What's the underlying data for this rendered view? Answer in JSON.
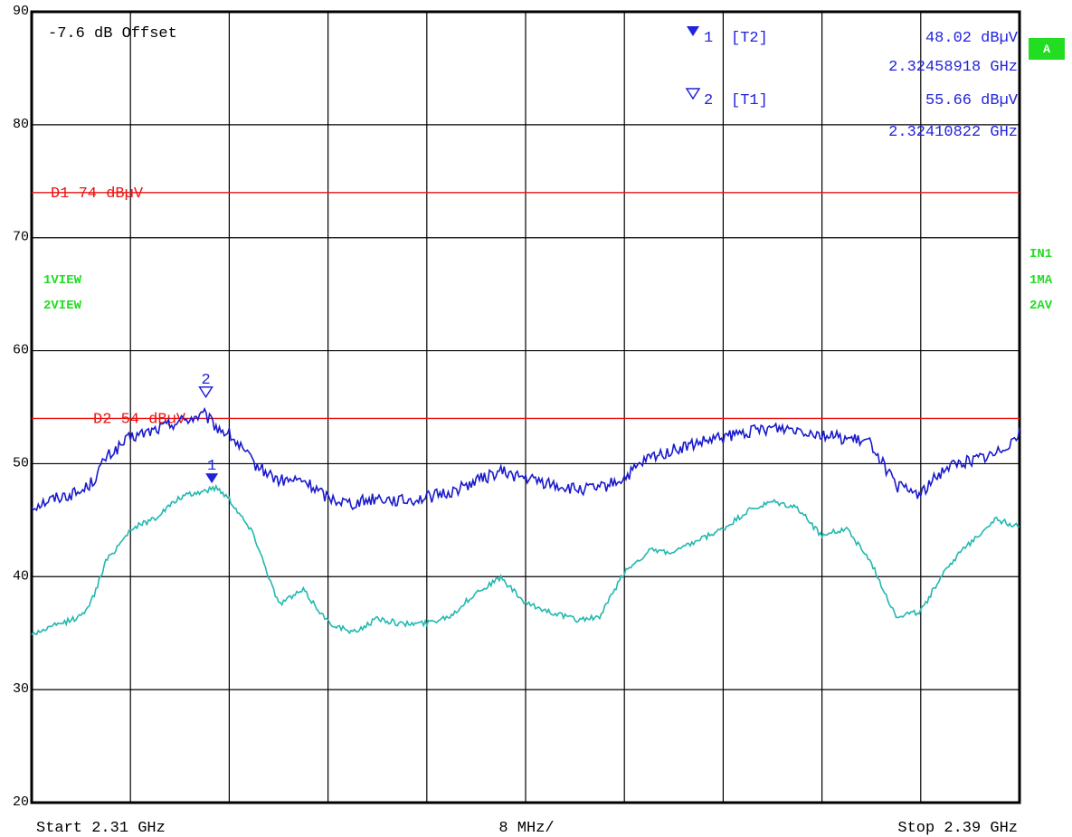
{
  "offset_label": "-7.6 dB Offset",
  "markers": [
    {
      "id": "1",
      "trace": "[T2]",
      "level": "48.02 dBµV",
      "freq": "2.32458918 GHz",
      "x_ghz": 2.32458918,
      "y": 48.02,
      "filled": true
    },
    {
      "id": "2",
      "trace": "[T1]",
      "level": "55.66 dBµV",
      "freq": "2.32410822 GHz",
      "x_ghz": 2.32410822,
      "y": 55.66,
      "filled": false
    }
  ],
  "limit_lines": [
    {
      "label": "D1 74 dBµV",
      "value": 74
    },
    {
      "label": "D2 54 dBµV",
      "value": 54
    }
  ],
  "left_status": [
    "1VIEW",
    "2VIEW"
  ],
  "right_status": [
    "IN1",
    "1MA",
    "2AV"
  ],
  "status_badge": "A",
  "footer": {
    "start": "Start 2.31 GHz",
    "span": "8 MHz/",
    "stop": "Stop 2.39 GHz"
  },
  "colors": {
    "trace1": "#1a1acc",
    "trace2": "#22b8b0",
    "limit": "#ee1111",
    "grid": "#000000",
    "status": "#22dd22"
  },
  "chart_data": {
    "type": "line",
    "xlim": [
      2.31,
      2.39
    ],
    "ylim": [
      20,
      90
    ],
    "y_ticks": [
      20,
      30,
      40,
      50,
      60,
      70,
      80,
      90
    ],
    "grid": true,
    "series": [
      {
        "name": "1MA",
        "x": [
          2.31,
          2.312,
          2.314,
          2.315,
          2.316,
          2.318,
          2.32,
          2.322,
          2.324,
          2.325,
          2.326,
          2.328,
          2.33,
          2.332,
          2.334,
          2.336,
          2.338,
          2.34,
          2.342,
          2.344,
          2.346,
          2.348,
          2.35,
          2.352,
          2.354,
          2.356,
          2.358,
          2.36,
          2.362,
          2.364,
          2.366,
          2.368,
          2.37,
          2.372,
          2.374,
          2.376,
          2.378,
          2.38,
          2.382,
          2.384,
          2.386,
          2.388,
          2.39
        ],
        "y": [
          46.2,
          47,
          47.5,
          48.5,
          50.5,
          52.3,
          53,
          53.8,
          54.3,
          53.2,
          52.6,
          50,
          48.5,
          48.5,
          47,
          46.5,
          47,
          46.7,
          47,
          47.5,
          48.5,
          49.3,
          48.7,
          48.2,
          47.7,
          47.8,
          48.7,
          50.5,
          51.2,
          51.8,
          52.3,
          52.8,
          53.2,
          53.1,
          52.6,
          52.2,
          51.8,
          48,
          47.3,
          49.7,
          50.3,
          50.8,
          52.7
        ]
      },
      {
        "name": "2AV",
        "x": [
          2.31,
          2.312,
          2.314,
          2.315,
          2.316,
          2.318,
          2.32,
          2.322,
          2.324,
          2.325,
          2.326,
          2.328,
          2.33,
          2.332,
          2.334,
          2.336,
          2.338,
          2.34,
          2.342,
          2.344,
          2.346,
          2.348,
          2.35,
          2.352,
          2.354,
          2.356,
          2.358,
          2.36,
          2.362,
          2.364,
          2.366,
          2.368,
          2.37,
          2.372,
          2.374,
          2.376,
          2.378,
          2.38,
          2.382,
          2.384,
          2.386,
          2.388,
          2.39
        ],
        "y": [
          34.9,
          35.7,
          36.5,
          38.2,
          41.3,
          44.2,
          45.2,
          47,
          47.6,
          47.9,
          46.9,
          43.7,
          37.6,
          38.8,
          36,
          35,
          36.3,
          35.8,
          35.9,
          36.6,
          38.6,
          39.9,
          37.6,
          36.9,
          36.2,
          36.4,
          40.4,
          42.3,
          42.1,
          43.2,
          44.2,
          45.8,
          46.6,
          46.1,
          43.6,
          44.3,
          41.2,
          36.5,
          36.9,
          40.7,
          43,
          45.1,
          44.4
        ]
      }
    ]
  }
}
